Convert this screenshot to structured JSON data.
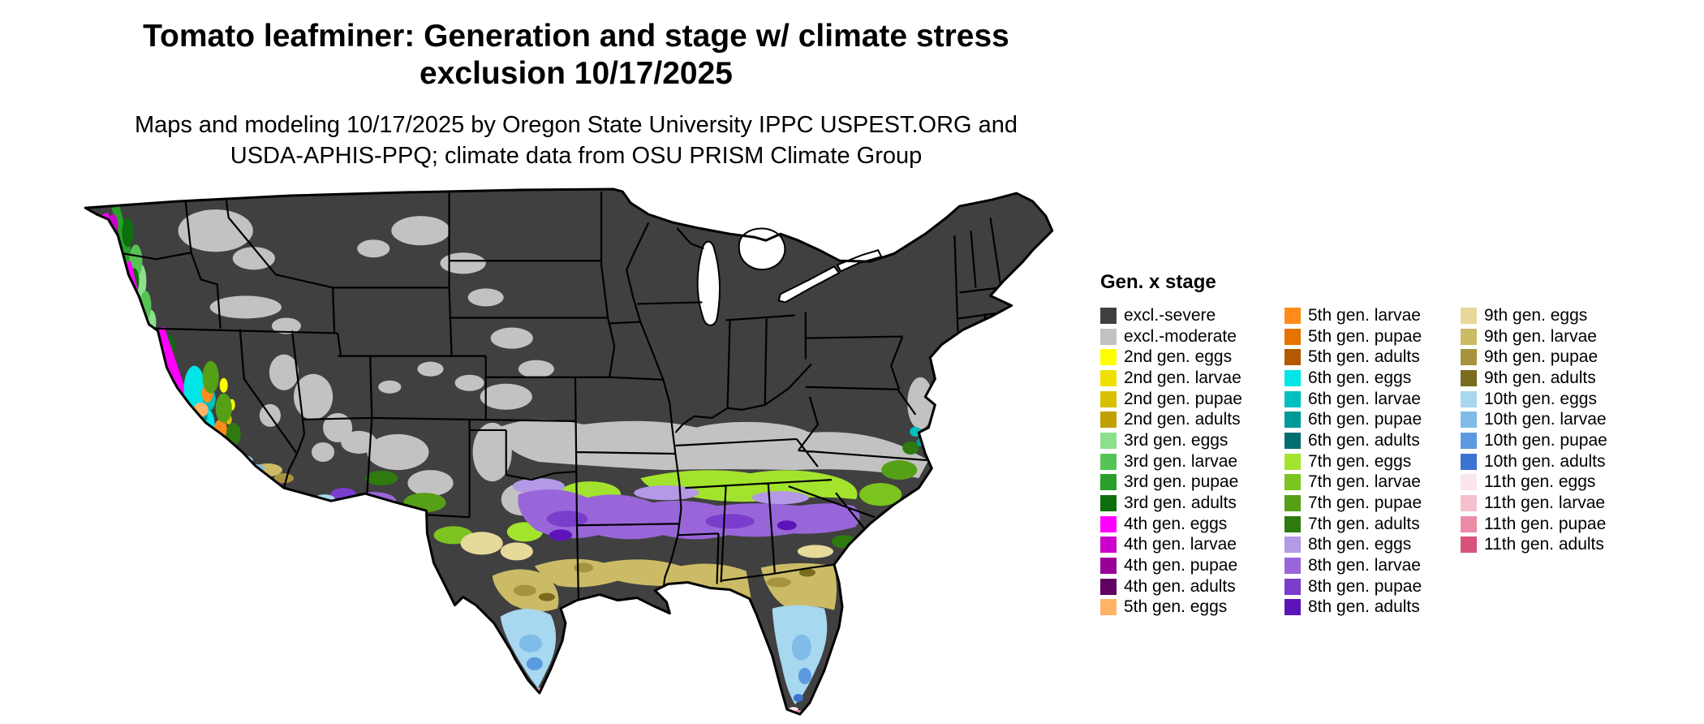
{
  "title": {
    "line1": "Tomato leafminer: Generation and stage w/ climate stress",
    "line2": "exclusion 10/17/2025"
  },
  "subtitle": {
    "line1": "Maps and modeling 10/17/2025 by Oregon State University IPPC USPEST.ORG and",
    "line2": "USDA-APHIS-PPQ; climate data from OSU PRISM Climate Group"
  },
  "map": {
    "border_color": "#000000",
    "water_color": "#ffffff"
  },
  "legend": {
    "title": "Gen. x stage",
    "columns": [
      [
        {
          "label": "excl.-severe",
          "color": "#404040"
        },
        {
          "label": "excl.-moderate",
          "color": "#c2c2c2"
        },
        {
          "label": "2nd gen. eggs",
          "color": "#ffff00"
        },
        {
          "label": "2nd gen. larvae",
          "color": "#f0e000"
        },
        {
          "label": "2nd gen. pupae",
          "color": "#d8c000"
        },
        {
          "label": "2nd gen. adults",
          "color": "#c0a000"
        },
        {
          "label": "3rd gen. eggs",
          "color": "#8ce08c"
        },
        {
          "label": "3rd gen. larvae",
          "color": "#55c455"
        },
        {
          "label": "3rd gen. pupae",
          "color": "#2a9e2a"
        },
        {
          "label": "3rd gen. adults",
          "color": "#0c6e0c"
        },
        {
          "label": "4th gen. eggs",
          "color": "#ff00ff"
        },
        {
          "label": "4th gen. larvae",
          "color": "#cc00cc"
        },
        {
          "label": "4th gen. pupae",
          "color": "#980098"
        },
        {
          "label": "4th gen. adults",
          "color": "#600060"
        },
        {
          "label": "5th gen. eggs",
          "color": "#ffb366"
        }
      ],
      [
        {
          "label": "5th gen. larvae",
          "color": "#ff8c1a"
        },
        {
          "label": "5th gen. pupae",
          "color": "#e67300"
        },
        {
          "label": "5th gen. adults",
          "color": "#b35900"
        },
        {
          "label": "6th gen. eggs",
          "color": "#00e6e6"
        },
        {
          "label": "6th gen. larvae",
          "color": "#00bfbf"
        },
        {
          "label": "6th gen. pupae",
          "color": "#009999"
        },
        {
          "label": "6th gen. adults",
          "color": "#006e6e"
        },
        {
          "label": "7th gen. eggs",
          "color": "#a3e32e"
        },
        {
          "label": "7th gen. larvae",
          "color": "#7cc41f"
        },
        {
          "label": "7th gen. pupae",
          "color": "#55a017"
        },
        {
          "label": "7th gen. adults",
          "color": "#2e7a0f"
        },
        {
          "label": "8th gen. eggs",
          "color": "#b399e6"
        },
        {
          "label": "8th gen. larvae",
          "color": "#9966d9"
        },
        {
          "label": "8th gen. pupae",
          "color": "#7a3dcc"
        },
        {
          "label": "8th gen. adults",
          "color": "#5c14b8"
        }
      ],
      [
        {
          "label": "9th gen. eggs",
          "color": "#e6d999"
        },
        {
          "label": "9th gen. larvae",
          "color": "#ccbb66"
        },
        {
          "label": "9th gen. pupae",
          "color": "#a69340"
        },
        {
          "label": "9th gen. adults",
          "color": "#7a6b1f"
        },
        {
          "label": "10th gen. eggs",
          "color": "#a8d8f0"
        },
        {
          "label": "10th gen. larvae",
          "color": "#80bce8"
        },
        {
          "label": "10th gen. pupae",
          "color": "#5c9ae0"
        },
        {
          "label": "10th gen. adults",
          "color": "#3d73d0"
        },
        {
          "label": "11th gen. eggs",
          "color": "#fae6eb"
        },
        {
          "label": "11th gen. larvae",
          "color": "#f5bfcc"
        },
        {
          "label": "11th gen. pupae",
          "color": "#eb8ca6"
        },
        {
          "label": "11th gen. adults",
          "color": "#d9527a"
        }
      ]
    ]
  }
}
